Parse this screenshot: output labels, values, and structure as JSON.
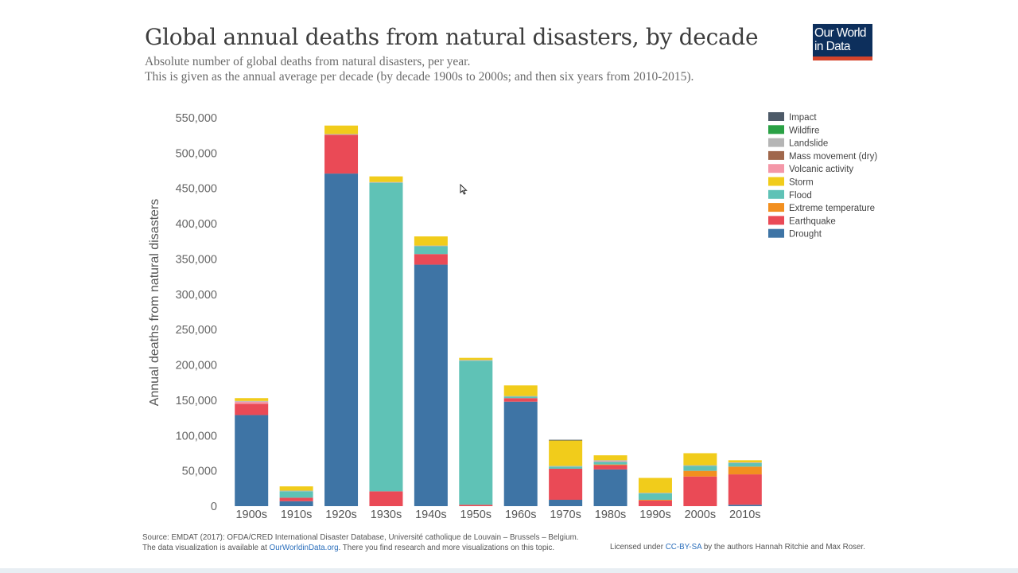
{
  "header": {
    "title": "Global annual deaths from natural disasters, by decade",
    "subtitle_line1": "Absolute number of global deaths from natural disasters, per year.",
    "subtitle_line2": "This is given as the annual average per decade (by decade 1900s to 2000s; and then six years from 2010-2015).",
    "logo_line1": "Our World",
    "logo_line2": "in Data"
  },
  "footer": {
    "source_text": "Source: EMDAT (2017): OFDA/CRED International Disaster Database, Université catholique de Louvain – Brussels – Belgium.",
    "viz_prefix": "The data visualization is available at ",
    "viz_link": "OurWorldinData.org",
    "viz_suffix": ". There you find research and more visualizations on this topic.",
    "license_prefix": "Licensed under ",
    "license_link": "CC-BY-SA",
    "license_suffix": " by the authors Hannah Ritchie and Max Roser."
  },
  "colors": {
    "Impact": "#4d5a68",
    "Wildfire": "#2aa145",
    "Landslide": "#b5b5b5",
    "Mass movement (dry)": "#a0674b",
    "Volcanic activity": "#f497a8",
    "Storm": "#f1cc1b",
    "Flood": "#5fc2b6",
    "Extreme temperature": "#f28f1f",
    "Earthquake": "#ea4a56",
    "Drought": "#3e74a5"
  },
  "chart_data": {
    "type": "bar",
    "stacked": true,
    "title": "Global annual deaths from natural disasters, by decade",
    "xlabel": "",
    "ylabel": "Annual deaths from natural disasters",
    "ylim": [
      0,
      550000
    ],
    "yticks": [
      0,
      50000,
      100000,
      150000,
      200000,
      250000,
      300000,
      350000,
      400000,
      450000,
      500000,
      550000
    ],
    "ytick_labels": [
      "0",
      "50,000",
      "100,000",
      "150,000",
      "200,000",
      "250,000",
      "300,000",
      "350,000",
      "400,000",
      "450,000",
      "500,000",
      "550,000"
    ],
    "legend_position": "top-right",
    "categories": [
      "1900s",
      "1910s",
      "1920s",
      "1930s",
      "1940s",
      "1950s",
      "1960s",
      "1970s",
      "1980s",
      "1990s",
      "2000s",
      "2010s"
    ],
    "series": [
      {
        "name": "Drought",
        "values": [
          129000,
          7000,
          471000,
          0,
          342000,
          0,
          148000,
          9000,
          52000,
          0,
          0,
          2000
        ]
      },
      {
        "name": "Earthquake",
        "values": [
          16000,
          5000,
          55000,
          21000,
          15000,
          2000,
          5000,
          44000,
          6000,
          8000,
          42000,
          43000
        ]
      },
      {
        "name": "Extreme temperature",
        "values": [
          0,
          0,
          0,
          0,
          0,
          0,
          0,
          0,
          1000,
          1000,
          8000,
          11000
        ]
      },
      {
        "name": "Flood",
        "values": [
          0,
          9000,
          0,
          437000,
          11000,
          204000,
          2000,
          3000,
          4000,
          9000,
          7000,
          5000
        ]
      },
      {
        "name": "Volcanic activity",
        "values": [
          3000,
          0,
          0,
          0,
          0,
          0,
          0,
          0,
          1000,
          0,
          0,
          0
        ]
      },
      {
        "name": "Mass movement (dry)",
        "values": [
          0,
          0,
          0,
          0,
          0,
          0,
          0,
          0,
          0,
          0,
          0,
          0
        ]
      },
      {
        "name": "Landslide",
        "values": [
          1000,
          1000,
          1000,
          1000,
          1000,
          1000,
          1000,
          1000,
          1000,
          1000,
          1000,
          1000
        ]
      },
      {
        "name": "Storm",
        "values": [
          4000,
          6000,
          12000,
          8000,
          13000,
          3000,
          15000,
          36000,
          7000,
          21000,
          17000,
          3000
        ]
      },
      {
        "name": "Wildfire",
        "values": [
          0,
          0,
          0,
          0,
          0,
          0,
          0,
          0,
          0,
          0,
          0,
          0
        ]
      },
      {
        "name": "Impact",
        "values": [
          0,
          0,
          0,
          0,
          0,
          0,
          0,
          1000,
          0,
          0,
          0,
          0
        ]
      }
    ],
    "legend_order": [
      "Impact",
      "Wildfire",
      "Landslide",
      "Mass movement (dry)",
      "Volcanic activity",
      "Storm",
      "Flood",
      "Extreme temperature",
      "Earthquake",
      "Drought"
    ]
  }
}
